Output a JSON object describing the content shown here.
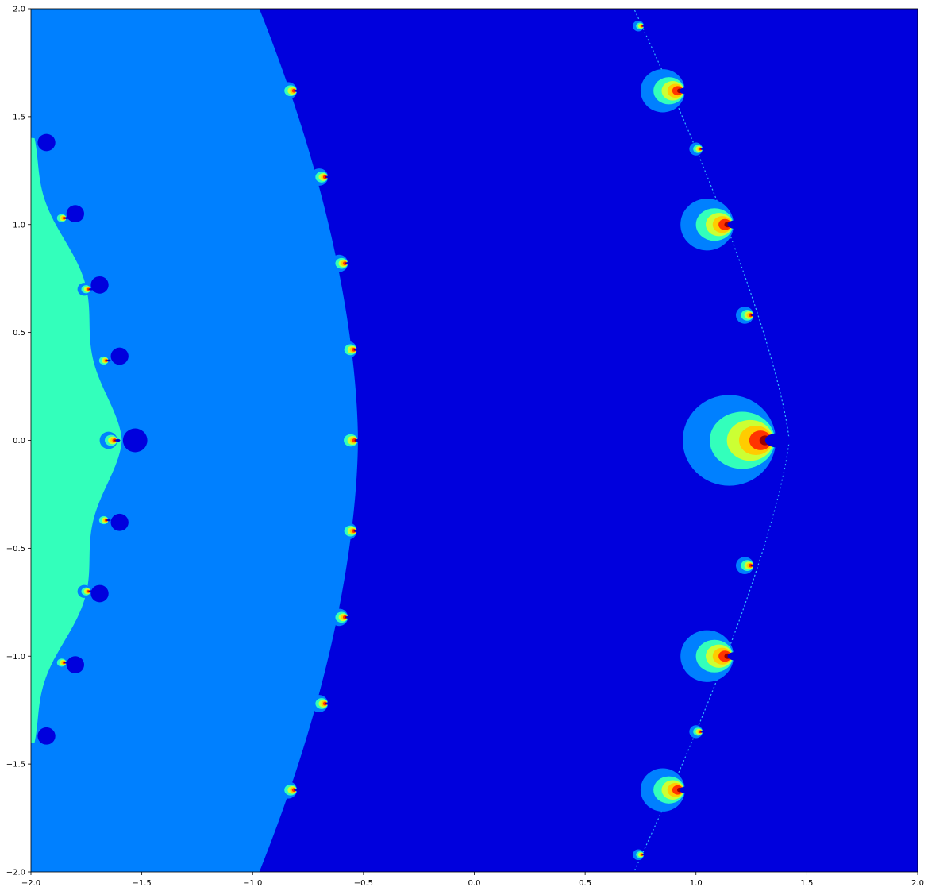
{
  "chart_data": {
    "type": "heatmap",
    "title": "",
    "xlabel": "",
    "ylabel": "",
    "xlim": [
      -2.0,
      2.0
    ],
    "ylim": [
      -2.0,
      2.0
    ],
    "grid": false,
    "legend": "none",
    "colormap": "jet",
    "xticks": [
      -2.0,
      -1.5,
      -1.0,
      -0.5,
      0.0,
      0.5,
      1.0,
      1.5,
      2.0
    ],
    "xtick_labels": [
      "−2.0",
      "−1.5",
      "−1.0",
      "−0.5",
      "0.0",
      "0.5",
      "1.0",
      "1.5",
      "2.0"
    ],
    "yticks": [
      2.0,
      1.5,
      1.0,
      0.5,
      0.0,
      -0.5,
      -1.0,
      -1.5,
      -2.0
    ],
    "ytick_labels": [
      "2.0",
      "1.5",
      "1.0",
      "0.5",
      "0.0",
      "−0.5",
      "−1.0",
      "−1.5",
      "−2.0"
    ],
    "regions": [
      {
        "name": "outer",
        "color": "#0000dd"
      },
      {
        "name": "middle",
        "color": "#0080ff"
      },
      {
        "name": "inner",
        "color": "#33ffbb"
      }
    ],
    "bulbs": [
      {
        "x": 1.15,
        "y": 0.0,
        "r": 0.21,
        "dir": "right"
      },
      {
        "x": 1.05,
        "y": 1.0,
        "r": 0.12,
        "dir": "right"
      },
      {
        "x": 1.05,
        "y": -1.0,
        "r": 0.12,
        "dir": "right"
      },
      {
        "x": 0.85,
        "y": 1.62,
        "r": 0.1,
        "dir": "right"
      },
      {
        "x": 0.85,
        "y": -1.62,
        "r": 0.1,
        "dir": "right"
      },
      {
        "x": 1.22,
        "y": 0.58,
        "r": 0.04,
        "dir": "right"
      },
      {
        "x": 1.22,
        "y": -0.58,
        "r": 0.04,
        "dir": "right"
      },
      {
        "x": 1.0,
        "y": 1.35,
        "r": 0.03,
        "dir": "right"
      },
      {
        "x": 1.0,
        "y": -1.35,
        "r": 0.03,
        "dir": "right"
      },
      {
        "x": 0.74,
        "y": 1.92,
        "r": 0.025,
        "dir": "right"
      },
      {
        "x": 0.74,
        "y": -1.92,
        "r": 0.025,
        "dir": "right"
      },
      {
        "x": -0.57,
        "y": 0.0,
        "r": 0.045,
        "dir": "right"
      },
      {
        "x": -0.57,
        "y": 0.42,
        "r": 0.04,
        "dir": "right"
      },
      {
        "x": -0.57,
        "y": -0.42,
        "r": 0.04,
        "dir": "right"
      },
      {
        "x": -0.61,
        "y": 0.82,
        "r": 0.04,
        "dir": "right"
      },
      {
        "x": -0.61,
        "y": -0.82,
        "r": 0.04,
        "dir": "right"
      },
      {
        "x": -0.7,
        "y": 1.22,
        "r": 0.04,
        "dir": "right"
      },
      {
        "x": -0.7,
        "y": -1.22,
        "r": 0.04,
        "dir": "right"
      },
      {
        "x": -0.84,
        "y": 1.62,
        "r": 0.04,
        "dir": "right"
      },
      {
        "x": -0.84,
        "y": -1.62,
        "r": 0.04,
        "dir": "right"
      },
      {
        "x": -1.65,
        "y": 0.0,
        "r": 0.04,
        "dir": "right"
      },
      {
        "x": -1.68,
        "y": 0.37,
        "r": 0.03,
        "dir": "right"
      },
      {
        "x": -1.68,
        "y": -0.37,
        "r": 0.03,
        "dir": "right"
      },
      {
        "x": -1.76,
        "y": 0.7,
        "r": 0.03,
        "dir": "right"
      },
      {
        "x": -1.76,
        "y": -0.7,
        "r": 0.03,
        "dir": "right"
      },
      {
        "x": -1.87,
        "y": 1.03,
        "r": 0.03,
        "dir": "right"
      },
      {
        "x": -1.87,
        "y": -1.03,
        "r": 0.03,
        "dir": "right"
      }
    ],
    "disks": [
      {
        "x": -1.53,
        "y": 0.0,
        "r": 0.055
      },
      {
        "x": -1.6,
        "y": 0.39,
        "r": 0.04
      },
      {
        "x": -1.6,
        "y": -0.38,
        "r": 0.04
      },
      {
        "x": -1.69,
        "y": 0.72,
        "r": 0.04
      },
      {
        "x": -1.69,
        "y": -0.71,
        "r": 0.04
      },
      {
        "x": -1.8,
        "y": 1.05,
        "r": 0.04
      },
      {
        "x": -1.8,
        "y": -1.04,
        "r": 0.04
      },
      {
        "x": -1.93,
        "y": 1.38,
        "r": 0.04
      },
      {
        "x": -1.93,
        "y": -1.37,
        "r": 0.04
      }
    ]
  }
}
